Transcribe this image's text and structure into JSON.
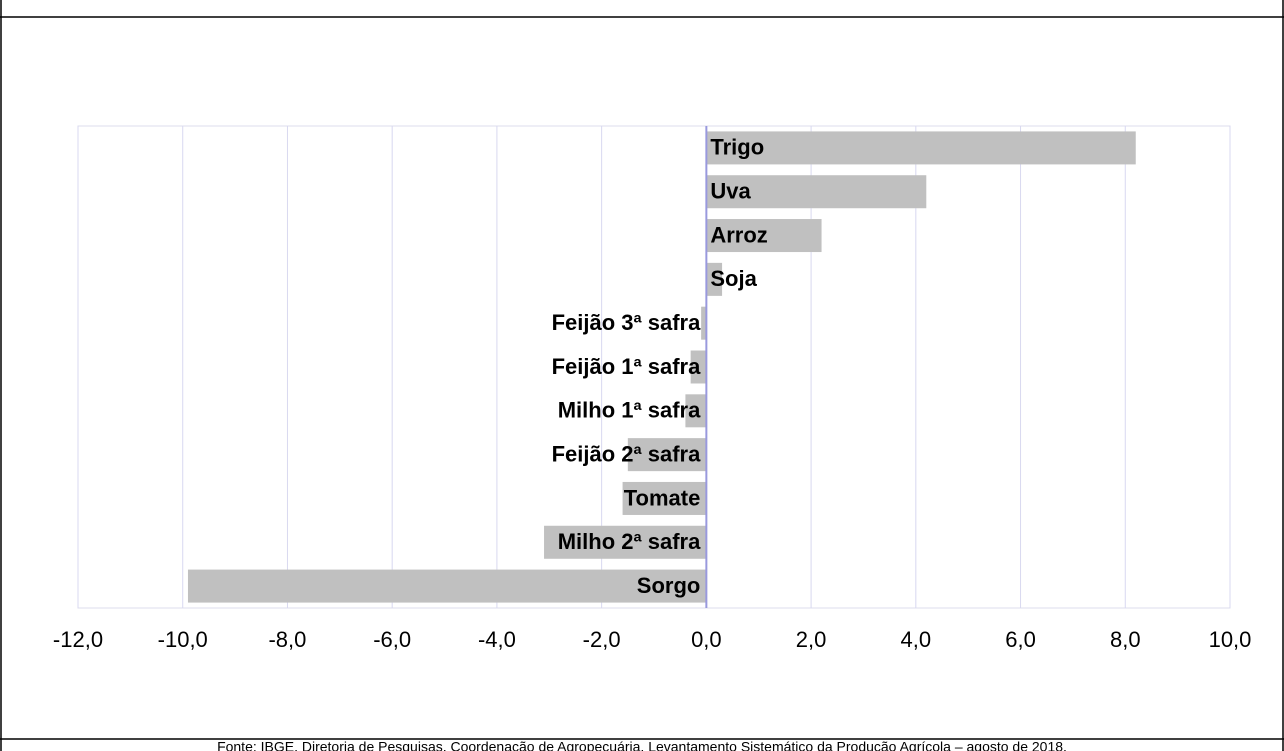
{
  "chart_data": {
    "type": "barh",
    "categories": [
      "Trigo",
      "Uva",
      "Arroz",
      "Soja",
      "Feijão 3ª safra",
      "Feijão 1ª safra",
      "Milho 1ª safra",
      "Feijão 2ª safra",
      "Tomate",
      "Milho 2ª safra",
      "Sorgo"
    ],
    "values": [
      8.2,
      4.2,
      2.2,
      0.3,
      -0.1,
      -0.3,
      -0.4,
      -1.5,
      -1.6,
      -3.1,
      -9.9
    ],
    "color": "#c0c0c0",
    "xlim": [
      -12,
      10
    ],
    "xticks": [
      {
        "value": -12,
        "label": "-12,0"
      },
      {
        "value": -10,
        "label": "-10,0"
      },
      {
        "value": -8,
        "label": "-8,0"
      },
      {
        "value": -6,
        "label": "-6,0"
      },
      {
        "value": -4,
        "label": "-4,0"
      },
      {
        "value": -2,
        "label": "-2,0"
      },
      {
        "value": 0,
        "label": "0,0"
      },
      {
        "value": 2,
        "label": "2,0"
      },
      {
        "value": 4,
        "label": "4,0"
      },
      {
        "value": 6,
        "label": "6,0"
      },
      {
        "value": 8,
        "label": "8,0"
      },
      {
        "value": 10,
        "label": "10,0"
      }
    ],
    "grid": true,
    "source": "Fonte: IBGE, Diretoria de Pesquisas, Coordenação de Agropecuária, Levantamento Sistemático da Produção Agrícola – agosto de 2018."
  }
}
